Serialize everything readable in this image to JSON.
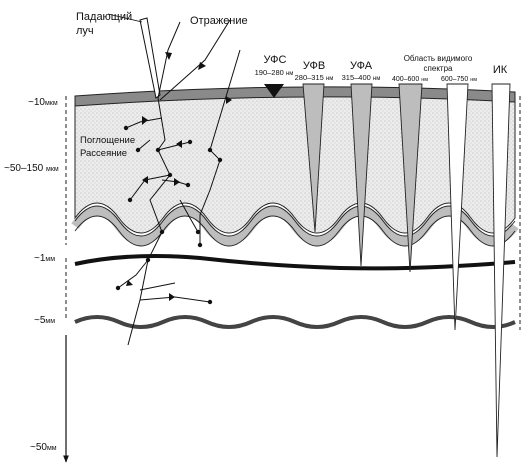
{
  "labels": {
    "incident_line1": "Падающий",
    "incident_line2": "луч",
    "reflection": "Отражение",
    "absorption": "Поглощение",
    "scattering": "Рассеяние",
    "visible_line1": "Область видимого",
    "visible_line2": "спектра"
  },
  "depth_markers": [
    {
      "value": "~10",
      "unit": "мкм"
    },
    {
      "value": "~50–150",
      "unit": "мкм"
    },
    {
      "value": "~1",
      "unit": "мм"
    },
    {
      "value": "~5",
      "unit": "мм"
    },
    {
      "value": "~50",
      "unit": "мм"
    }
  ],
  "bands": [
    {
      "name": "УФС",
      "range": "190–280",
      "unit": "нм"
    },
    {
      "name": "УФВ",
      "range": "280–315",
      "unit": "нм"
    },
    {
      "name": "УФА",
      "range": "315–400",
      "unit": "нм"
    },
    {
      "name": "",
      "range": "400–600",
      "unit": "нм"
    },
    {
      "name": "",
      "range": "600–750",
      "unit": "нм"
    },
    {
      "name": "ИК",
      "range": "",
      "unit": ""
    }
  ]
}
